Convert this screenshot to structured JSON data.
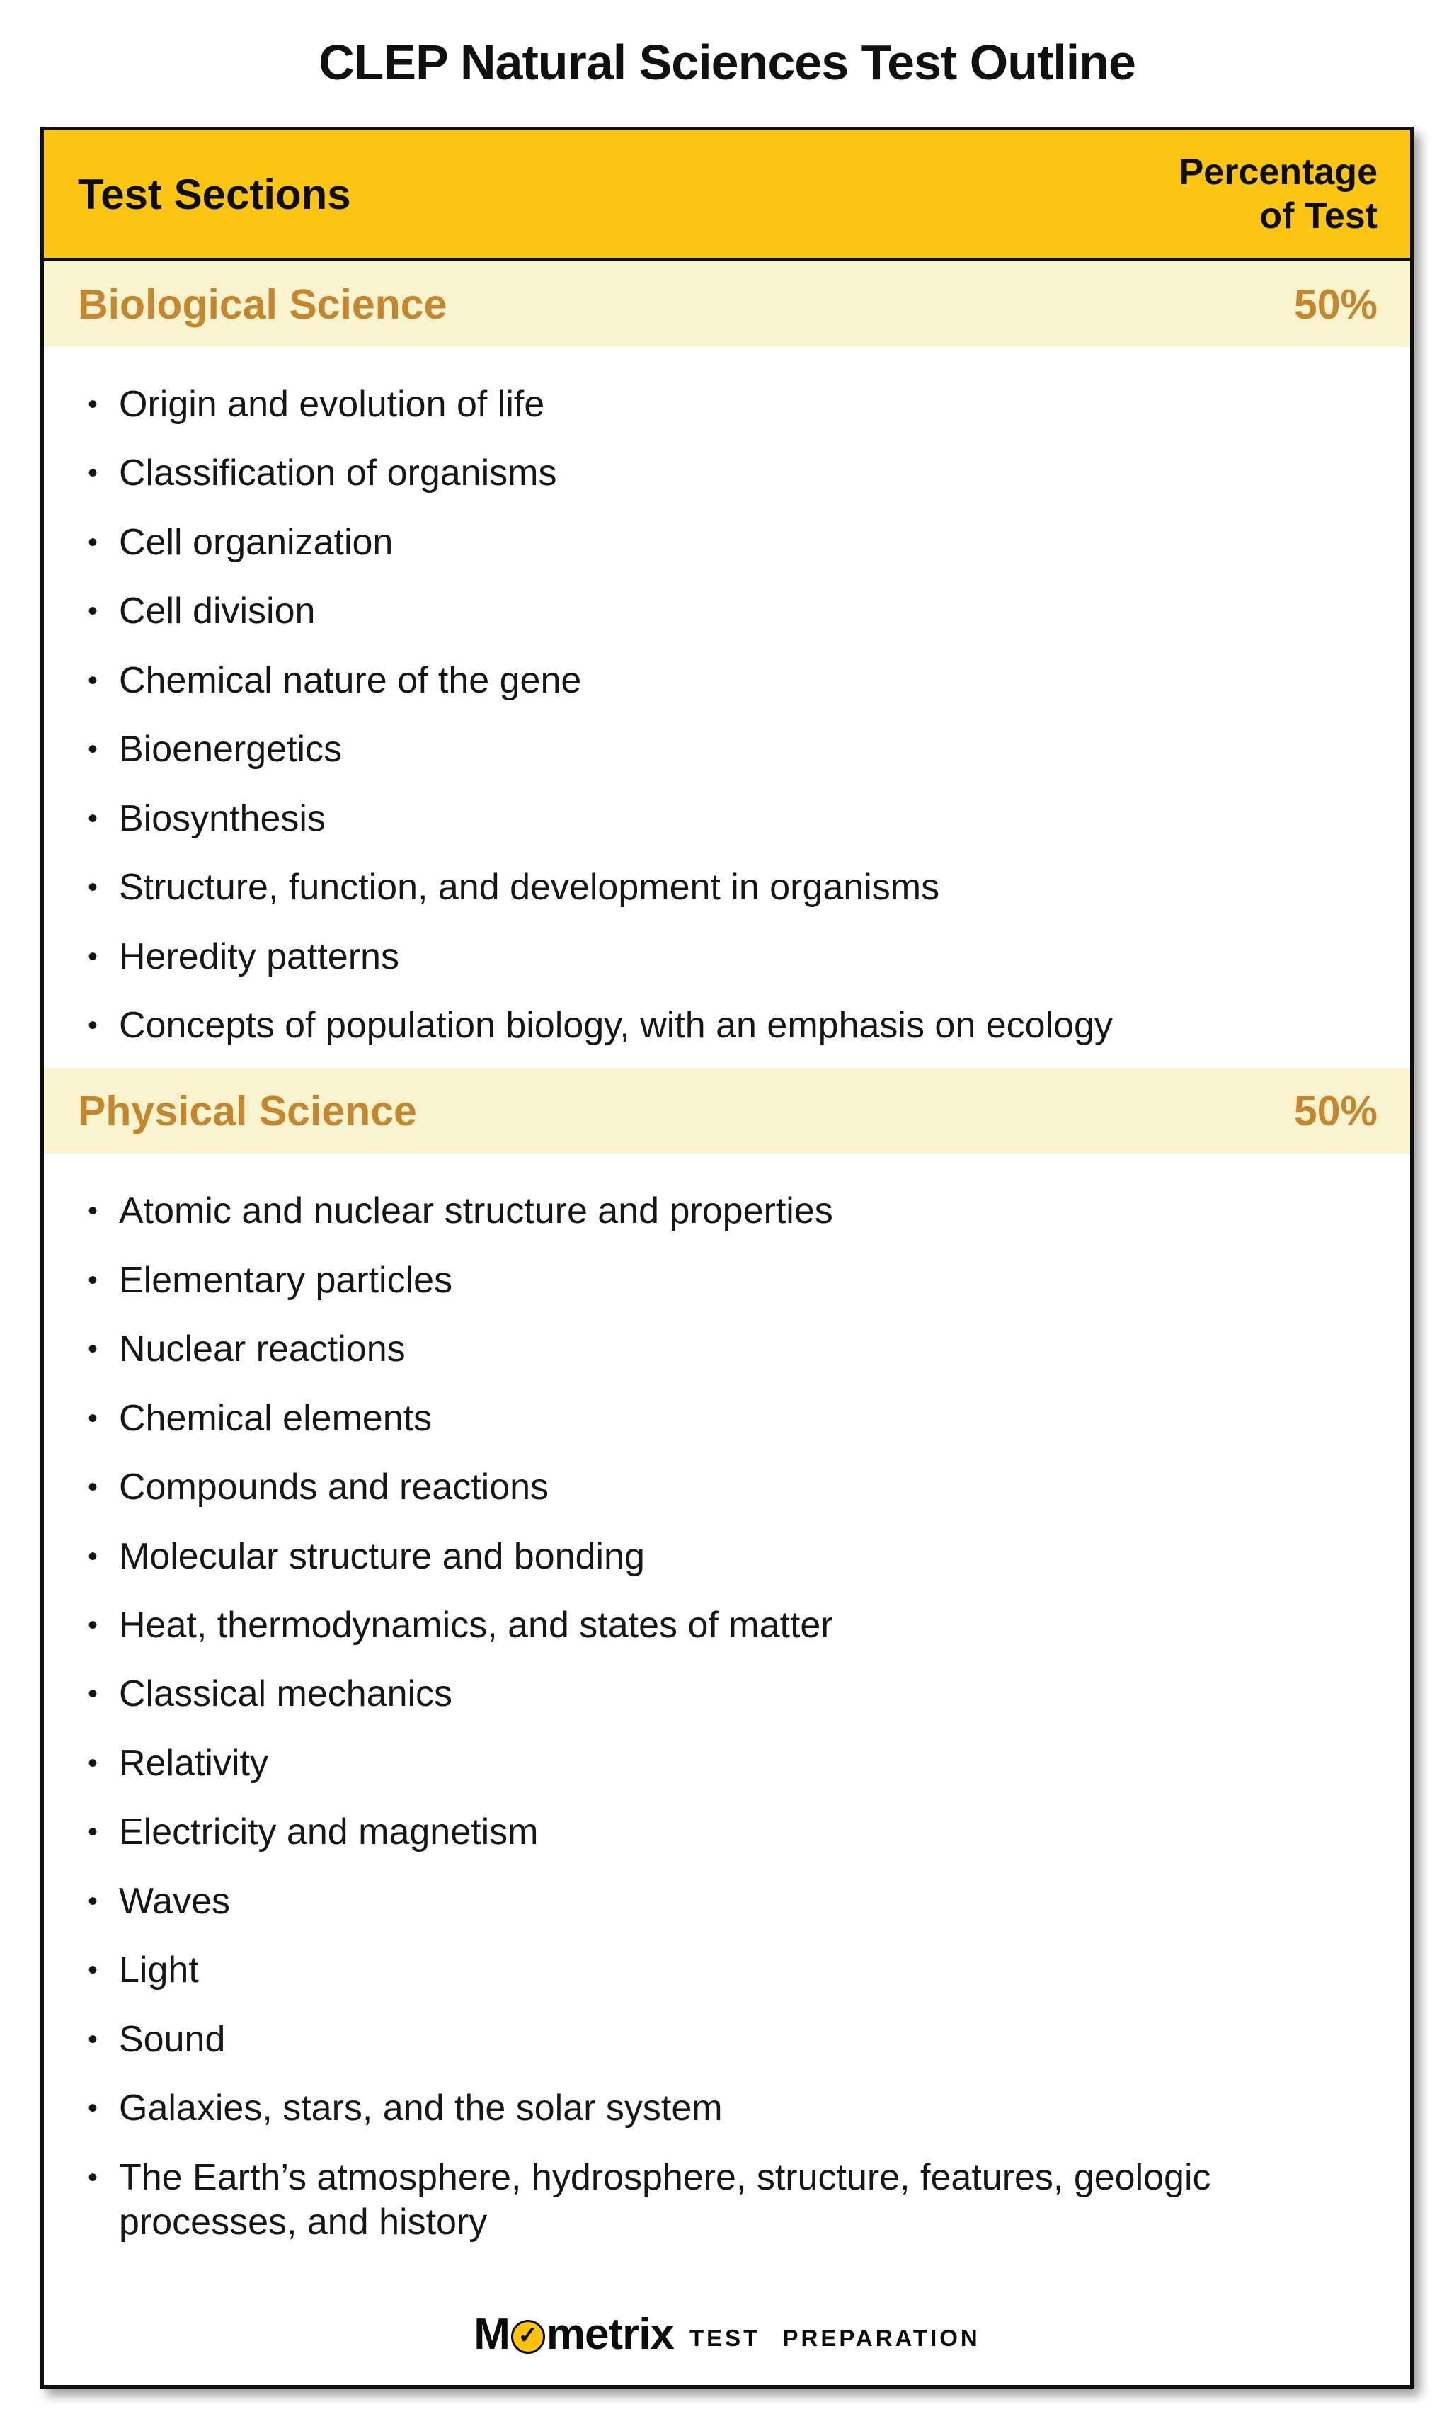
{
  "page": {
    "title": "CLEP Natural Sciences Test Outline"
  },
  "table": {
    "header": {
      "col1": "Test Sections",
      "col2": "Percentage\nof Test"
    },
    "sections": [
      {
        "name": "Biological Science",
        "percentage": "50%",
        "items": [
          "Origin and evolution of life",
          "Classification of organisms",
          "Cell organization",
          "Cell division",
          "Chemical nature of the gene",
          "Bioenergetics",
          "Biosynthesis",
          "Structure, function, and development in organisms",
          "Heredity patterns",
          "Concepts of population biology, with an emphasis on ecology"
        ]
      },
      {
        "name": "Physical Science",
        "percentage": "50%",
        "items": [
          "Atomic and nuclear structure and properties",
          "Elementary particles",
          "Nuclear reactions",
          "Chemical elements",
          "Compounds and reactions",
          "Molecular structure and bonding",
          "Heat, thermodynamics, and states of matter",
          "Classical mechanics",
          "Relativity",
          "Electricity and magnetism",
          "Waves",
          "Light",
          "Sound",
          "Galaxies, stars, and the solar system",
          "The Earth’s atmosphere, hydrosphere, structure, features, geologic processes, and history"
        ]
      }
    ]
  },
  "footer": {
    "brand_m": "M",
    "check_glyph": "✓",
    "brand_rest": "metrix",
    "tagline": "TEST PREPARATION"
  },
  "colors": {
    "header_gold": "#FDC513",
    "section_cream": "#FAF3CF",
    "accent_ochre": "#C4872E",
    "logo_yellow": "#FFC20E",
    "border_black": "#101010"
  }
}
